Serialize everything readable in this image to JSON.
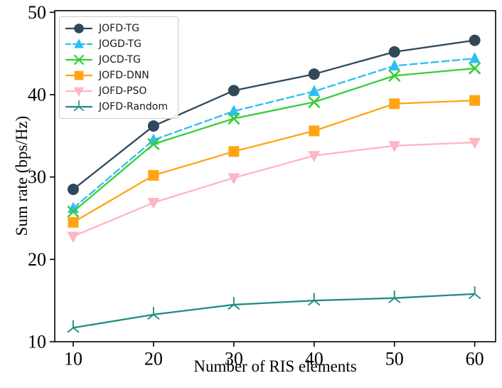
{
  "chart_data": {
    "type": "line",
    "title": "",
    "xlabel": "Number of RIS elements",
    "ylabel": "Sum rate (bps/Hz)",
    "x": [
      10,
      20,
      30,
      40,
      50,
      60
    ],
    "xticks": [
      10,
      20,
      30,
      40,
      50,
      60
    ],
    "yticks": [
      10,
      20,
      30,
      40,
      50
    ],
    "xlim": [
      7.7,
      62.6
    ],
    "ylim": [
      10,
      50.2
    ],
    "grid": false,
    "legend_position": "upper-left",
    "axis_color": "#000000",
    "series": [
      {
        "name": "JOFD-TG",
        "color": "#31485A",
        "marker": "circle",
        "linestyle": "solid",
        "values": [
          28.5,
          36.2,
          40.5,
          42.5,
          45.2,
          46.6
        ]
      },
      {
        "name": "JOGD-TG",
        "color": "#2EBEF2",
        "marker": "triangle-up",
        "linestyle": "dashed",
        "values": [
          26.2,
          34.5,
          38.0,
          40.4,
          43.5,
          44.4
        ]
      },
      {
        "name": "JOCD-TG",
        "color": "#37CE37",
        "marker": "x",
        "linestyle": "solid",
        "values": [
          25.8,
          34.0,
          37.1,
          39.1,
          42.3,
          43.2
        ]
      },
      {
        "name": "JOFD-DNN",
        "color": "#FFA513",
        "marker": "square",
        "linestyle": "solid",
        "values": [
          24.5,
          30.2,
          33.1,
          35.6,
          38.9,
          39.3
        ]
      },
      {
        "name": "JOFD-PSO",
        "color": "#FFB5C5",
        "marker": "triangle-down",
        "linestyle": "solid",
        "values": [
          22.8,
          26.9,
          29.9,
          32.6,
          33.8,
          34.2
        ]
      },
      {
        "name": "JOFD-Random",
        "color": "#218C85",
        "marker": "tri-down",
        "linestyle": "solid",
        "values": [
          11.7,
          13.3,
          14.5,
          15.0,
          15.3,
          15.8
        ]
      }
    ]
  }
}
